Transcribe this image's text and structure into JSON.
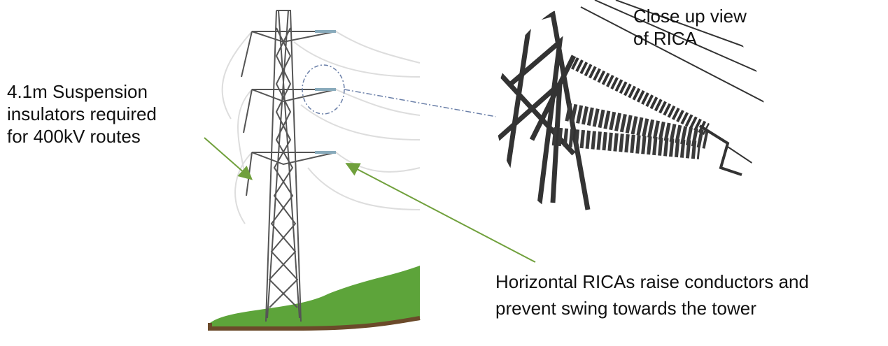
{
  "annotations": [
    {
      "lines": [
        "4.1m Suspension",
        "insulators required",
        "for 400kV routes"
      ]
    },
    {
      "lines": [
        "Close up view",
        "of RICA"
      ]
    },
    {
      "lines": [
        "Horizontal RICAs raise conductors and",
        "prevent swing towards the tower"
      ]
    }
  ]
}
